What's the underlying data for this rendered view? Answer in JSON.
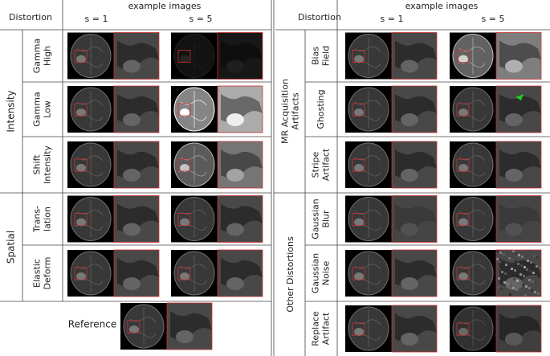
{
  "header": {
    "distortion": "Distortion",
    "example_images": "example images",
    "s1": "s = 1",
    "s5": "s = 5"
  },
  "left": {
    "groups": [
      {
        "label": "Intensity",
        "rows": [
          {
            "lines": [
              "Gamma",
              "High"
            ]
          },
          {
            "lines": [
              "Gamma",
              "Low"
            ]
          },
          {
            "lines": [
              "Shift",
              "Intensity"
            ]
          }
        ]
      },
      {
        "label": "Spatial",
        "rows": [
          {
            "lines": [
              "Trans-",
              "lation"
            ]
          },
          {
            "lines": [
              "Elastic",
              "Deform"
            ]
          }
        ]
      }
    ],
    "reference": "Reference"
  },
  "right": {
    "groups": [
      {
        "lines": [
          "MR Acquisition",
          "Artifacts"
        ],
        "rows": [
          {
            "lines": [
              "Bias",
              "Field"
            ]
          },
          {
            "lines": [
              "Ghosting"
            ]
          },
          {
            "lines": [
              "Stripe",
              "Artifact"
            ]
          }
        ]
      },
      {
        "lines": [
          "Other Distortions"
        ],
        "rows": [
          {
            "lines": [
              "Gaussian",
              "Blur"
            ]
          },
          {
            "lines": [
              "Gaussian",
              "Noise"
            ]
          },
          {
            "lines": [
              "Replace",
              "Artifact"
            ]
          }
        ]
      }
    ]
  }
}
